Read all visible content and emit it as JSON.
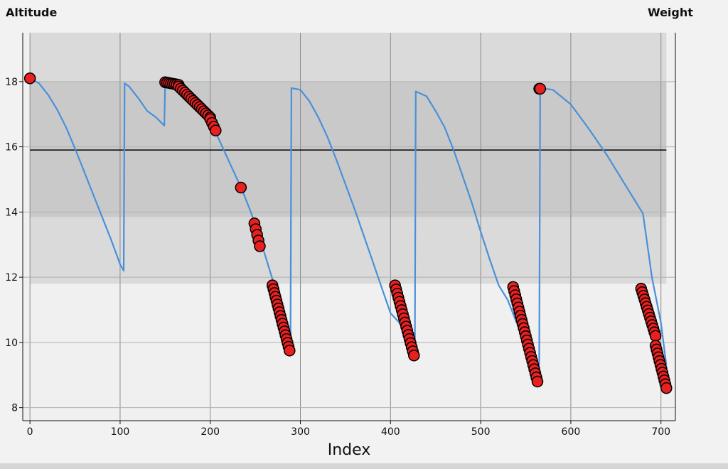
{
  "header": {
    "left_label": "Altitude",
    "right_label": "Weight"
  },
  "chart_data": {
    "type": "scatter",
    "xlabel": "Index",
    "ylabel": "",
    "xlim": [
      -8,
      716
    ],
    "ylim": [
      7.6,
      19.5
    ],
    "xticks": [
      0,
      100,
      200,
      300,
      400,
      500,
      600,
      700
    ],
    "yticks": [
      8,
      10,
      12,
      14,
      16,
      18
    ],
    "grid": true,
    "bands": [
      {
        "y0": 11.8,
        "y1": 19.5,
        "color": "#dadada"
      },
      {
        "y0": 13.85,
        "y1": 18.0,
        "color": "#c9c9c9"
      }
    ],
    "reference_line": {
      "y": 15.9,
      "color": "#000000"
    },
    "series": [
      {
        "type": "line",
        "color": "#4a90d9",
        "x": [
          0,
          10,
          20,
          30,
          40,
          50,
          60,
          70,
          80,
          90,
          100,
          104,
          105,
          110,
          120,
          130,
          140,
          149,
          150,
          151,
          160,
          170,
          180,
          190,
          200,
          206,
          215,
          225,
          235,
          245,
          255,
          265,
          275,
          285,
          288,
          289,
          290,
          300,
          310,
          320,
          330,
          340,
          350,
          360,
          370,
          380,
          390,
          400,
          410,
          420,
          426,
          427,
          428,
          440,
          450,
          460,
          470,
          480,
          490,
          500,
          510,
          520,
          530,
          540,
          550,
          560,
          564,
          565,
          566,
          580,
          600,
          620,
          640,
          660,
          670,
          680,
          690,
          700,
          706
        ],
        "y": [
          18.1,
          17.95,
          17.6,
          17.15,
          16.6,
          15.95,
          15.25,
          14.55,
          13.85,
          13.15,
          12.4,
          12.2,
          17.95,
          17.85,
          17.5,
          17.1,
          16.9,
          16.65,
          17.95,
          18.0,
          17.9,
          17.7,
          17.4,
          17.05,
          16.8,
          16.45,
          15.9,
          15.3,
          14.7,
          14.0,
          13.2,
          12.3,
          11.4,
          10.4,
          9.8,
          10.0,
          17.8,
          17.75,
          17.4,
          16.9,
          16.3,
          15.6,
          14.85,
          14.1,
          13.3,
          12.5,
          11.7,
          10.9,
          10.6,
          10.3,
          9.6,
          10.1,
          17.7,
          17.55,
          17.1,
          16.6,
          15.9,
          15.1,
          14.3,
          13.4,
          12.55,
          11.75,
          11.3,
          10.6,
          9.9,
          9.2,
          8.8,
          9.5,
          17.8,
          17.75,
          17.3,
          16.55,
          15.75,
          14.85,
          14.4,
          13.95,
          12.0,
          10.6,
          9.3
        ],
        "name": ""
      },
      {
        "type": "scatter",
        "fill": "#e82020",
        "stroke": "#000000",
        "groups": [
          {
            "x0": 0,
            "x1": 0,
            "y0": 18.1,
            "y1": 18.1,
            "n": 1,
            "cross": true
          },
          {
            "x0": 150,
            "x1": 165,
            "y0": 17.98,
            "y1": 17.9,
            "n": 8,
            "cross": false
          },
          {
            "x0": 165,
            "x1": 200,
            "y0": 17.85,
            "y1": 16.9,
            "n": 16,
            "cross": false
          },
          {
            "x0": 200,
            "x1": 206,
            "y0": 16.85,
            "y1": 16.5,
            "n": 4,
            "cross": true
          },
          {
            "x0": 234,
            "x1": 234,
            "y0": 14.75,
            "y1": 14.75,
            "n": 1,
            "cross": true
          },
          {
            "x0": 249,
            "x1": 255,
            "y0": 13.65,
            "y1": 12.95,
            "n": 5,
            "cross": true
          },
          {
            "x0": 269,
            "x1": 288,
            "y0": 11.75,
            "y1": 9.75,
            "n": 18,
            "cross": true
          },
          {
            "x0": 405,
            "x1": 426,
            "y0": 11.75,
            "y1": 9.6,
            "n": 18,
            "cross": true
          },
          {
            "x0": 536,
            "x1": 563,
            "y0": 11.7,
            "y1": 8.8,
            "n": 24,
            "cross": true
          },
          {
            "x0": 565,
            "x1": 566,
            "y0": 17.78,
            "y1": 17.78,
            "n": 2,
            "cross": true
          },
          {
            "x0": 678,
            "x1": 694,
            "y0": 11.65,
            "y1": 10.2,
            "n": 14,
            "cross": true
          },
          {
            "x0": 694,
            "x1": 706,
            "y0": 9.9,
            "y1": 8.6,
            "n": 12,
            "cross": true
          }
        ],
        "name": ""
      }
    ]
  }
}
